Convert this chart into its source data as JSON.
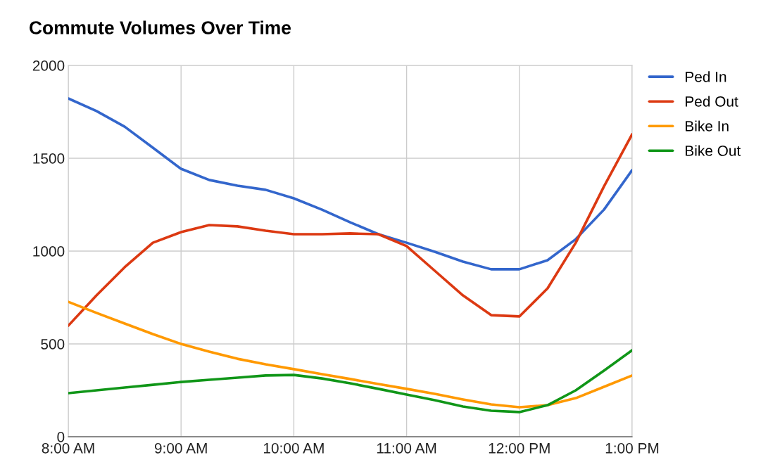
{
  "chart_data": {
    "type": "line",
    "title": "Commute Volumes Over Time",
    "x": [
      8,
      8.25,
      8.5,
      8.75,
      9,
      9.25,
      9.5,
      9.75,
      10,
      10.25,
      10.5,
      10.75,
      11,
      11.25,
      11.5,
      11.75,
      12,
      12.25,
      12.5,
      12.75,
      13
    ],
    "series": [
      {
        "name": "Ped In",
        "color": "#3366cc",
        "values": [
          1822,
          1754,
          1670,
          1557,
          1443,
          1383,
          1352,
          1330,
          1284,
          1223,
          1155,
          1091,
          1045,
          996,
          943,
          902,
          902,
          951,
          1064,
          1223,
          1436
        ]
      },
      {
        "name": "Ped Out",
        "color": "#dc3912",
        "values": [
          598,
          761,
          913,
          1045,
          1102,
          1140,
          1133,
          1110,
          1091,
          1091,
          1095,
          1091,
          1027,
          894,
          761,
          655,
          648,
          799,
          1045,
          1348,
          1629
        ]
      },
      {
        "name": "Bike In",
        "color": "#ff9900",
        "values": [
          727,
          667,
          610,
          553,
          500,
          458,
          420,
          390,
          364,
          337,
          311,
          284,
          258,
          231,
          201,
          174,
          159,
          170,
          208,
          269,
          330
        ]
      },
      {
        "name": "Bike Out",
        "color": "#109618",
        "values": [
          235,
          250,
          265,
          280,
          295,
          307,
          318,
          330,
          333,
          314,
          288,
          258,
          227,
          197,
          163,
          140,
          133,
          170,
          250,
          356,
          466
        ]
      }
    ],
    "xlim": [
      8,
      13
    ],
    "xticks": [
      {
        "value": 8,
        "label": "8:00 AM"
      },
      {
        "value": 9,
        "label": "9:00 AM"
      },
      {
        "value": 10,
        "label": "10:00 AM"
      },
      {
        "value": 11,
        "label": "11:00 AM"
      },
      {
        "value": 12,
        "label": "12:00 PM"
      },
      {
        "value": 13,
        "label": "1:00 PM"
      }
    ],
    "ylim": [
      0,
      2000
    ],
    "yticks": [
      0,
      500,
      1000,
      1500,
      2000
    ],
    "grid": true,
    "legend": "right",
    "marker": "none",
    "line_style": "solid"
  }
}
